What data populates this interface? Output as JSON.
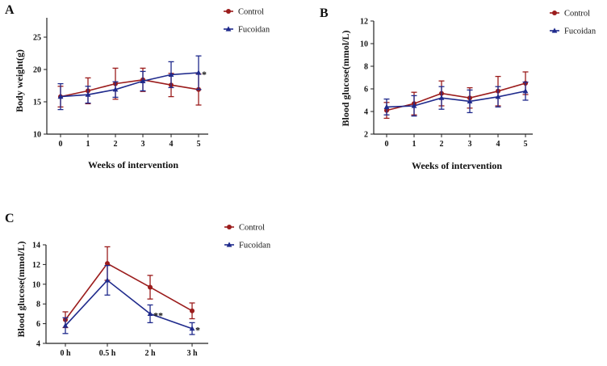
{
  "colors": {
    "control": "#9b1c1c",
    "fucoidan": "#1f2a8c",
    "axis": "#222222"
  },
  "chart_data": [
    {
      "panel": "A",
      "type": "line",
      "title": "",
      "xlabel": "Weeks of intervention",
      "ylabel": "Body weight(g)",
      "categories": [
        "0",
        "1",
        "2",
        "3",
        "4",
        "5"
      ],
      "ylim": [
        10,
        28
      ],
      "yticks": [
        10,
        15,
        20,
        25
      ],
      "legend": {
        "position": "top-right"
      },
      "series": [
        {
          "name": "Control",
          "key": "control",
          "marker": "circle",
          "values": [
            15.8,
            16.7,
            17.8,
            18.4,
            17.6,
            16.9
          ],
          "errors": [
            1.6,
            2.0,
            2.4,
            1.8,
            1.8,
            2.4
          ]
        },
        {
          "name": "Fucoidan",
          "key": "fucoidan",
          "marker": "triangle",
          "values": [
            15.8,
            16.1,
            16.9,
            18.2,
            19.2,
            19.5
          ],
          "errors": [
            2.0,
            1.3,
            1.2,
            1.5,
            2.0,
            2.6
          ]
        }
      ],
      "annotations": [
        {
          "category": "5",
          "series": "Fucoidan",
          "text": "*"
        }
      ]
    },
    {
      "panel": "B",
      "type": "line",
      "title": "",
      "xlabel": "Weeks of intervention",
      "ylabel": "Blood glucose(mmol/L)",
      "categories": [
        "0",
        "1",
        "2",
        "3",
        "4",
        "5"
      ],
      "ylim": [
        2,
        12
      ],
      "yticks": [
        2,
        4,
        6,
        8,
        10,
        12
      ],
      "legend": {
        "position": "top-right"
      },
      "series": [
        {
          "name": "Control",
          "key": "control",
          "marker": "circle",
          "values": [
            4.1,
            4.7,
            5.6,
            5.2,
            5.8,
            6.5
          ],
          "errors": [
            0.7,
            1.0,
            1.1,
            0.9,
            1.3,
            1.0
          ]
        },
        {
          "name": "Fucoidan",
          "key": "fucoidan",
          "marker": "triangle",
          "values": [
            4.4,
            4.5,
            5.2,
            4.9,
            5.3,
            5.8
          ],
          "errors": [
            0.7,
            0.9,
            1.0,
            1.0,
            0.9,
            0.8
          ]
        }
      ],
      "annotations": []
    },
    {
      "panel": "C",
      "type": "line",
      "title": "",
      "xlabel": "",
      "ylabel": "Blood glucose(mmol/L)",
      "categories": [
        "0 h",
        "0.5 h",
        "2 h",
        "3 h"
      ],
      "ylim": [
        4,
        14
      ],
      "yticks": [
        4,
        6,
        8,
        10,
        12,
        14
      ],
      "legend": {
        "position": "top-right"
      },
      "series": [
        {
          "name": "Control",
          "key": "control",
          "marker": "circle",
          "values": [
            6.4,
            12.1,
            9.7,
            7.3
          ],
          "errors": [
            0.8,
            1.7,
            1.2,
            0.8
          ]
        },
        {
          "name": "Fucoidan",
          "key": "fucoidan",
          "marker": "triangle",
          "values": [
            5.8,
            10.4,
            7.0,
            5.5
          ],
          "errors": [
            0.8,
            1.5,
            0.9,
            0.6
          ]
        }
      ],
      "annotations": [
        {
          "category": "2 h",
          "series": "Fucoidan",
          "text": "**"
        },
        {
          "category": "3 h",
          "series": "Fucoidan",
          "text": "*"
        }
      ]
    }
  ]
}
